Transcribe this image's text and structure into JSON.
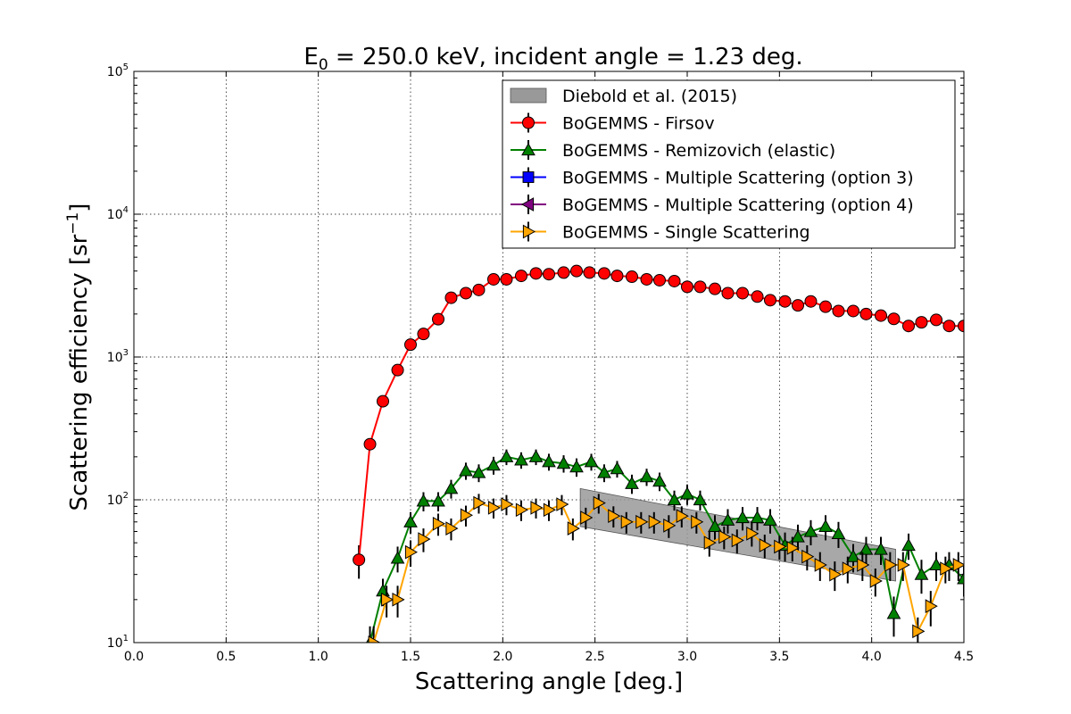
{
  "chart_data": {
    "type": "line",
    "title_prefix": "E",
    "title_sub": "0",
    "title_rest": " = 250.0 keV, incident angle = 1.23 deg.",
    "xlabel": "Scattering angle [deg.]",
    "ylabel_main": "Scattering efficiency [sr",
    "ylabel_sup": "−1",
    "ylabel_end": "]",
    "xlim": [
      0.0,
      4.5
    ],
    "ylim": [
      10,
      100000
    ],
    "yscale": "log",
    "grid": true,
    "legend_position": "top-right",
    "x_ticks": [
      "0.0",
      "0.5",
      "1.0",
      "1.5",
      "2.0",
      "2.5",
      "3.0",
      "3.5",
      "4.0",
      "4.5"
    ],
    "y_ticks": [
      {
        "base": "10",
        "exp": "1"
      },
      {
        "base": "10",
        "exp": "2"
      },
      {
        "base": "10",
        "exp": "3"
      },
      {
        "base": "10",
        "exp": "4"
      },
      {
        "base": "10",
        "exp": "5"
      }
    ],
    "band": {
      "name": "Diebold et al. (2015)",
      "color": "#999999",
      "x": [
        2.42,
        4.13
      ],
      "upper": [
        120,
        45
      ],
      "lower": [
        65,
        27
      ]
    },
    "series": [
      {
        "name": "BoGEMMS - Firsov",
        "color": "#ff0000",
        "marker": "circle",
        "x": [
          1.22,
          1.28,
          1.35,
          1.43,
          1.5,
          1.57,
          1.65,
          1.72,
          1.8,
          1.87,
          1.95,
          2.02,
          2.1,
          2.18,
          2.25,
          2.33,
          2.4,
          2.47,
          2.55,
          2.62,
          2.7,
          2.78,
          2.85,
          2.93,
          3.0,
          3.07,
          3.15,
          3.22,
          3.3,
          3.38,
          3.45,
          3.53,
          3.6,
          3.67,
          3.75,
          3.82,
          3.9,
          3.97,
          4.05,
          4.12,
          4.2,
          4.27,
          4.35,
          4.42,
          4.5
        ],
        "y": [
          38,
          245,
          490,
          810,
          1220,
          1450,
          1840,
          2600,
          2800,
          2950,
          3500,
          3500,
          3700,
          3850,
          3800,
          3900,
          4000,
          3900,
          3850,
          3700,
          3650,
          3500,
          3450,
          3400,
          3100,
          3100,
          3000,
          2800,
          2800,
          2650,
          2500,
          2450,
          2300,
          2450,
          2250,
          2100,
          2100,
          2000,
          1950,
          1850,
          1650,
          1750,
          1820,
          1650,
          1650
        ],
        "err": [
          10,
          20,
          25,
          40,
          60,
          70,
          90,
          100,
          100,
          110,
          120,
          120,
          120,
          130,
          130,
          130,
          130,
          130,
          130,
          120,
          120,
          120,
          120,
          120,
          110,
          110,
          110,
          100,
          100,
          100,
          100,
          90,
          90,
          90,
          90,
          80,
          80,
          80,
          80,
          70,
          70,
          70,
          70,
          70,
          70
        ]
      },
      {
        "name": "BoGEMMS - Remizovich (elastic)",
        "color": "#008000",
        "marker": "triangle-up",
        "x": [
          1.28,
          1.35,
          1.43,
          1.5,
          1.57,
          1.65,
          1.72,
          1.8,
          1.87,
          1.95,
          2.02,
          2.1,
          2.18,
          2.25,
          2.33,
          2.4,
          2.48,
          2.55,
          2.62,
          2.7,
          2.78,
          2.85,
          2.93,
          3.0,
          3.07,
          3.15,
          3.22,
          3.3,
          3.38,
          3.45,
          3.53,
          3.6,
          3.67,
          3.75,
          3.82,
          3.9,
          3.97,
          4.05,
          4.12,
          4.2,
          4.27,
          4.35,
          4.42,
          4.5
        ],
        "y": [
          10,
          23,
          39,
          70,
          98,
          98,
          120,
          160,
          155,
          175,
          200,
          190,
          200,
          185,
          180,
          170,
          185,
          155,
          165,
          130,
          145,
          135,
          100,
          110,
          100,
          65,
          72,
          75,
          75,
          72,
          48,
          55,
          60,
          65,
          58,
          40,
          45,
          45,
          16,
          48,
          30,
          35,
          35,
          28
        ],
        "err": [
          3,
          5,
          8,
          12,
          15,
          15,
          18,
          22,
          22,
          25,
          25,
          25,
          25,
          25,
          25,
          25,
          25,
          22,
          22,
          20,
          20,
          20,
          16,
          18,
          16,
          13,
          14,
          14,
          14,
          14,
          11,
          12,
          12,
          13,
          12,
          9,
          10,
          10,
          5,
          10,
          8,
          8,
          8,
          7
        ]
      },
      {
        "name": "BoGEMMS - Multiple Scattering (option 3)",
        "color": "#0000ff",
        "marker": "square",
        "x": [],
        "y": [],
        "err": []
      },
      {
        "name": "BoGEMMS - Multiple Scattering (option 4)",
        "color": "#800080",
        "marker": "triangle-left",
        "x": [],
        "y": [],
        "err": []
      },
      {
        "name": "BoGEMMS - Single Scattering",
        "color": "#ffa500",
        "marker": "triangle-right",
        "x": [
          1.3,
          1.37,
          1.43,
          1.5,
          1.57,
          1.65,
          1.72,
          1.8,
          1.87,
          1.95,
          2.02,
          2.1,
          2.18,
          2.25,
          2.32,
          2.38,
          2.45,
          2.52,
          2.6,
          2.67,
          2.75,
          2.82,
          2.9,
          2.97,
          3.05,
          3.12,
          3.2,
          3.27,
          3.35,
          3.42,
          3.5,
          3.57,
          3.65,
          3.72,
          3.8,
          3.87,
          3.95,
          4.02,
          4.1,
          4.17,
          4.25,
          4.32,
          4.4,
          4.47
        ],
        "y": [
          10,
          20,
          20,
          43,
          53,
          68,
          63,
          78,
          95,
          88,
          93,
          85,
          88,
          85,
          93,
          63,
          75,
          95,
          77,
          70,
          70,
          70,
          66,
          77,
          70,
          50,
          55,
          52,
          58,
          48,
          47,
          46,
          40,
          35,
          30,
          33,
          35,
          27,
          35,
          35,
          12,
          18,
          33,
          35
        ],
        "err": [
          3,
          5,
          5,
          9,
          10,
          12,
          11,
          13,
          15,
          14,
          15,
          14,
          14,
          14,
          15,
          11,
          13,
          15,
          13,
          12,
          12,
          12,
          12,
          13,
          12,
          10,
          10,
          10,
          11,
          9,
          9,
          9,
          8,
          8,
          7,
          7,
          8,
          6,
          8,
          8,
          3,
          5,
          7,
          8
        ]
      }
    ]
  }
}
